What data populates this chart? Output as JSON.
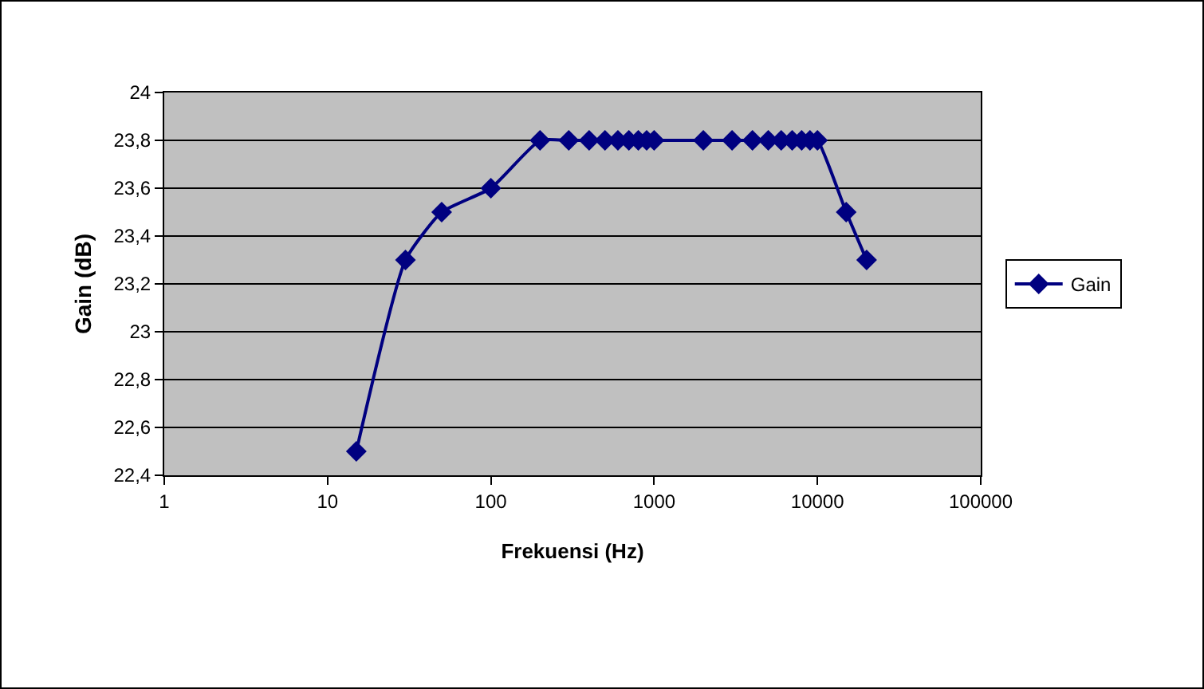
{
  "chart_data": {
    "type": "line",
    "xlabel": "Frekuensi (Hz)",
    "ylabel": "Gain (dB)",
    "x": [
      15,
      30,
      50,
      100,
      200,
      300,
      400,
      500,
      600,
      700,
      800,
      900,
      1000,
      2000,
      3000,
      4000,
      5000,
      6000,
      7000,
      8000,
      9000,
      10000,
      15000,
      20000
    ],
    "series": [
      {
        "name": "Gain",
        "color": "#000080",
        "values": [
          22.5,
          23.3,
          23.5,
          23.6,
          23.8,
          23.8,
          23.8,
          23.8,
          23.8,
          23.8,
          23.8,
          23.8,
          23.8,
          23.8,
          23.8,
          23.8,
          23.8,
          23.8,
          23.8,
          23.8,
          23.8,
          23.8,
          23.5,
          23.3
        ]
      }
    ],
    "log": "x",
    "xlim": [
      1,
      100000
    ],
    "xticks": [
      1,
      10,
      100,
      1000,
      10000,
      100000
    ],
    "ylim": [
      22.4,
      24
    ],
    "yticks": [
      {
        "value": 22.4,
        "label": "22,4"
      },
      {
        "value": 22.6,
        "label": "22,6"
      },
      {
        "value": 22.8,
        "label": "22,8"
      },
      23,
      {
        "value": 23.2,
        "label": "23,2"
      },
      {
        "value": 23.4,
        "label": "23,4"
      },
      {
        "value": 23.6,
        "label": "23,6"
      },
      {
        "value": 23.8,
        "label": "23,8"
      },
      24
    ],
    "grid": "y",
    "legend": "right",
    "marker": "diamond",
    "line_style": "solid"
  }
}
